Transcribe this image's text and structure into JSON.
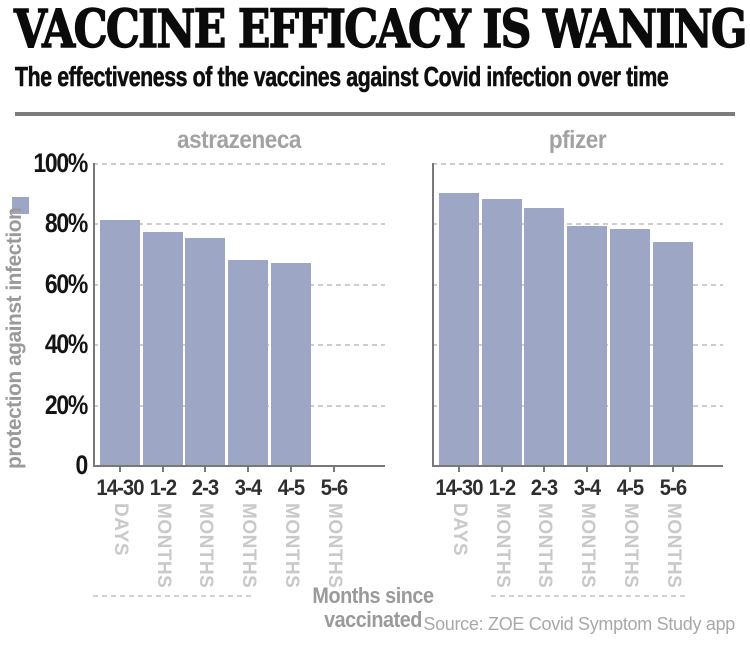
{
  "header": {
    "title": "VACCINE EFFICACY IS WANING",
    "subtitle": "The effectiveness of the vaccines against Covid infection over time"
  },
  "chart_data": {
    "type": "bar",
    "categories": [
      "14-30",
      "1-2",
      "2-3",
      "3-4",
      "4-5",
      "5-6"
    ],
    "category_units": [
      "DAYS",
      "MONTHS",
      "MONTHS",
      "MONTHS",
      "MONTHS",
      "MONTHS"
    ],
    "series": [
      {
        "name": "astrazeneca",
        "values": [
          81,
          77,
          75,
          68,
          67,
          null
        ]
      },
      {
        "name": "pfizer",
        "values": [
          90,
          88,
          85,
          79,
          78,
          74
        ]
      }
    ],
    "title": "",
    "xlabel": "Months since vaccinated",
    "ylabel": "protection against infection",
    "y_ticks": [
      "100%",
      "80%",
      "60%",
      "40%",
      "20%",
      "0"
    ],
    "ylim": [
      0,
      100
    ],
    "grid": "horizontal-dashed",
    "legend_position": "left",
    "bar_color": "#9da7c5"
  },
  "source": "Source: ZOE Covid Symptom Study app"
}
